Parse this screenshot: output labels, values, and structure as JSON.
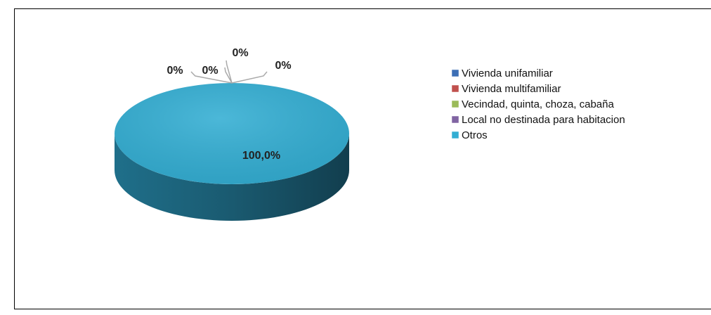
{
  "chart_data": {
    "type": "pie",
    "categories": [
      "Vivienda unifamiliar",
      "Vivienda multifamiliar",
      "Vecindad, quinta, choza, cabaña",
      "Local no destinada para habitacion",
      "Otros"
    ],
    "values": [
      0,
      0,
      0,
      0,
      100
    ],
    "value_labels": [
      "0%",
      "0%",
      "0%",
      "0%",
      "100,0%"
    ],
    "colors": [
      "#3d6fb6",
      "#c0504d",
      "#9bbb59",
      "#8064a2",
      "#33aed3"
    ],
    "legend": "right"
  }
}
